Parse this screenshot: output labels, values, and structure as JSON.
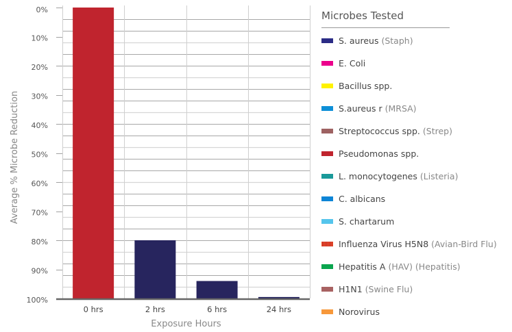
{
  "chart_data": {
    "type": "bar",
    "title": "",
    "xlabel": "Exposure Hours",
    "ylabel": "Average % Microbe Reduction",
    "categories": [
      "0 hrs",
      "2 hrs",
      "6 hrs",
      "24 hrs"
    ],
    "values": [
      0,
      80,
      94,
      99.5
    ],
    "bar_colors": [
      "#c0242e",
      "#27255e",
      "#27255e",
      "#27255e"
    ],
    "ylim": [
      0,
      100
    ],
    "y_inverted": true,
    "y_ticks": [
      "0%",
      "10%",
      "20%",
      "30%",
      "40%",
      "50%",
      "60%",
      "70%",
      "80%",
      "90%",
      "100%"
    ],
    "grid": true,
    "legend_position": "right"
  },
  "legend": {
    "title": "Microbes Tested",
    "items": [
      {
        "name": "S. aureus",
        "note": "(Staph)",
        "color": "#2b2c86"
      },
      {
        "name": "E. Coli",
        "note": "",
        "color": "#ec008c"
      },
      {
        "name": "Bacillus spp.",
        "note": "",
        "color": "#fff200"
      },
      {
        "name": "S.aureus r",
        "note": "(MRSA)",
        "color": "#0d8fd7"
      },
      {
        "name": "Streptococcus spp.",
        "note": "(Strep)",
        "color": "#9e6262"
      },
      {
        "name": "Pseudomonas spp.",
        "note": "",
        "color": "#c0242e"
      },
      {
        "name": "L. monocytogenes",
        "note": "(Listeria)",
        "color": "#1a9a9a"
      },
      {
        "name": "C. albicans",
        "note": "",
        "color": "#0d85d6"
      },
      {
        "name": "S. chartarum",
        "note": "",
        "color": "#55c5ec"
      },
      {
        "name": "Influenza Virus H5N8",
        "note": "(Avian-Bird Flu)",
        "color": "#f15a24"
      },
      {
        "name": "Hepatitis A",
        "note": "(HAV) (Hepatitis)",
        "color": "#0aa54e"
      },
      {
        "name": "H1N1",
        "note": "(Swine Flu)",
        "color": "#a86262"
      },
      {
        "name": "Norovirus",
        "note": "",
        "color": "#f7983a"
      }
    ]
  }
}
